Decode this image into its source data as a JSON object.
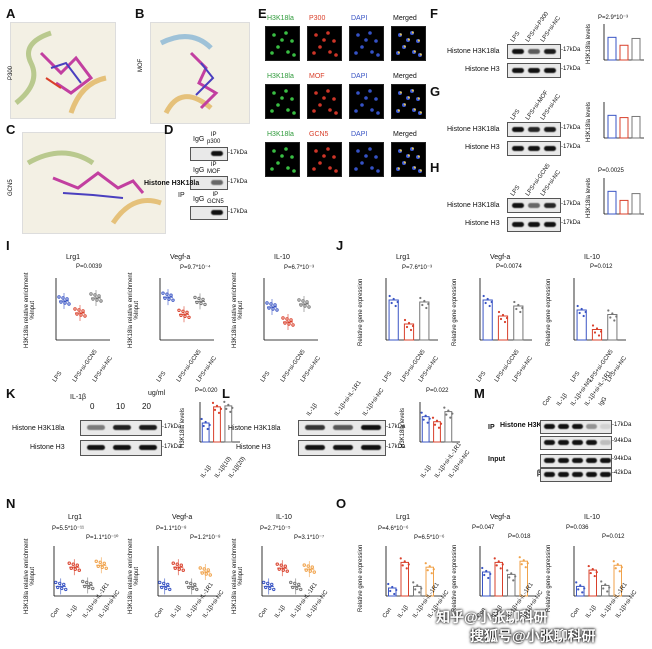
{
  "panels": {
    "A": {
      "label": "A",
      "protein": "P300"
    },
    "B": {
      "label": "B",
      "protein": "MOF"
    },
    "C": {
      "label": "C",
      "protein": "GCN5"
    },
    "D": {
      "label": "D",
      "row_label": "Histone H3K18la",
      "ip": "IP",
      "igg": "IgG",
      "ip_p300": "IP\np300",
      "ip_mof": "IP\nMOF",
      "ip_gcn5": "IP\nGCN5",
      "kda": "-17kDa"
    },
    "E": {
      "label": "E",
      "headers_row1": [
        "H3K18la",
        "P300",
        "DAPI",
        "Merged"
      ],
      "headers_row2": [
        "H3K18la",
        "MOF",
        "DAPI",
        "Merged"
      ],
      "headers_row3": [
        "H3K18la",
        "GCN5",
        "DAPI",
        "Merged"
      ],
      "scale": "10μm"
    },
    "F": {
      "label": "F",
      "lanes": [
        "LPS",
        "LPS+si-P300",
        "LPS+si-NC"
      ],
      "rows": [
        "Histone H3K18la",
        "Histone H3"
      ],
      "kda": [
        "-17kDa",
        "-17kDa"
      ],
      "pval": "P=2.9*10⁻³",
      "ylabel": "H3K18la levels"
    },
    "G": {
      "label": "G",
      "lanes": [
        "LPS",
        "LPS+si-MOF",
        "LPS+si-NC"
      ],
      "rows": [
        "Histone H3K18la",
        "Histone H3"
      ],
      "kda": [
        "-17kDa",
        "-17kDa"
      ],
      "ylabel": "H3K18la levels"
    },
    "H": {
      "label": "H",
      "lanes": [
        "LPS",
        "LPS+si-GCN5",
        "LPS+si-NC"
      ],
      "rows": [
        "Histone H3K18la",
        "Histone H3"
      ],
      "kda": [
        "-17kDa",
        "-17kDa"
      ],
      "pval": "P=0.0025",
      "ylabel": "H3K18la levels"
    },
    "I": {
      "label": "I",
      "ylabel": "H3K18la relative enrichment\n%Input",
      "plots": [
        {
          "title": "Lrg1",
          "pval": "P=0.0039"
        },
        {
          "title": "Vegf-a",
          "pval": "P=9.7*10⁻⁴"
        },
        {
          "title": "IL-10",
          "pval": "P=6.7*10⁻³"
        }
      ],
      "xcats": [
        "LPS",
        "LPS+si-GCN5",
        "LPS+si-NC"
      ]
    },
    "J": {
      "label": "J",
      "ylabel": "Relative gene expression",
      "plots": [
        {
          "title": "Lrg1",
          "pval": "P=7.6*10⁻³"
        },
        {
          "title": "Vegf-a",
          "pval": "P=0.0074"
        },
        {
          "title": "IL-10",
          "pval": "P=0.012"
        }
      ],
      "xcats": [
        "LPS",
        "LPS+si-GCN5",
        "LPS+si-NC"
      ]
    },
    "K": {
      "label": "K",
      "treat": "IL-1β",
      "unit": "ug/ml",
      "doses": [
        "0",
        "10",
        "20"
      ],
      "rows": [
        "Histone H3K18la",
        "Histone H3"
      ],
      "kda": [
        "-17kDa",
        "-17kDa"
      ],
      "pval": "P=0.020",
      "ylabel": "H3K18la levels",
      "xcats": [
        "IL-1β",
        "IL-1β(10)",
        "IL-1β(20)"
      ]
    },
    "L": {
      "label": "L",
      "lanes": [
        "IL-1β",
        "IL-1β+si-IL-1R1",
        "IL-1β+si-NC"
      ],
      "rows": [
        "Histone H3K18la",
        "Histone H3"
      ],
      "kda": [
        "-17kDa",
        "-17kDa"
      ],
      "pval": "P=0.022",
      "ylabel": "H3K18la levels",
      "xcats": [
        "IL-1β",
        "IL-1β+si-IL-1R1",
        "IL-1β+si-NC"
      ]
    },
    "M": {
      "label": "M",
      "lanes": [
        "Con",
        "IL-1β",
        "IL-1β+si-NC",
        "IL-1β+si-IL-1R1",
        "IgG"
      ],
      "ip": "IP",
      "input": "Input",
      "rows": [
        "Histone H3K18la",
        "GCN5",
        "GCN5",
        "β-actin"
      ],
      "kda": [
        "-17kDa",
        "-94kDa",
        "-94kDa",
        "-42kDa"
      ]
    },
    "N": {
      "label": "N",
      "ylabel": "H3K18la relative enrichment\n%Input",
      "plots": [
        {
          "title": "Lrg1",
          "p1": "P=5.5*10⁻¹¹",
          "p2": "P=1.1*10⁻¹⁰"
        },
        {
          "title": "Vegf-a",
          "p1": "P=1.1*10⁻⁸",
          "p2": "P=1.2*10⁻⁸"
        },
        {
          "title": "IL-10",
          "p1": "P=2.7*10⁻⁵",
          "p2": "P=3.1*10⁻⁷"
        }
      ],
      "xcats": [
        "Con",
        "IL-1β",
        "IL-1β+si-IL-1R1",
        "IL-1β+si-NC"
      ]
    },
    "O": {
      "label": "O",
      "ylabel": "Relative gene expression",
      "plots": [
        {
          "title": "Lrg1",
          "p1": "P=4.6*10⁻⁶",
          "p2": "P=6.5*10⁻⁶"
        },
        {
          "title": "Vegf-a",
          "p1": "P=0.047",
          "p2": "P=0.018"
        },
        {
          "title": "IL-10",
          "p1": "P=0.036",
          "p2": "P=0.012"
        }
      ],
      "xcats": [
        "Con",
        "IL-1β",
        "IL-1β+si-IL-1R1",
        "IL-1β+si-NC"
      ]
    }
  },
  "watermark": {
    "line1": "知乎@小张聊科研",
    "line2": "搜狐号@小张聊科研"
  },
  "colors": {
    "blue": "#3a55c4",
    "red": "#d9402b",
    "grey": "#777777",
    "orange": "#f0a24a",
    "green": "#2e9a3a",
    "magenta": "#c23fa0"
  },
  "chart_data": [
    {
      "type": "bar",
      "panel": "F",
      "categories": [
        "LPS",
        "LPS+si-P300",
        "LPS+si-NC"
      ],
      "values": [
        1.0,
        0.65,
        0.95
      ],
      "ylim": [
        0,
        1.5
      ]
    },
    {
      "type": "bar",
      "panel": "G",
      "categories": [
        "LPS",
        "LPS+si-MOF",
        "LPS+si-NC"
      ],
      "values": [
        1.0,
        0.9,
        0.95
      ],
      "ylim": [
        0,
        1.5
      ]
    },
    {
      "type": "bar",
      "panel": "H",
      "categories": [
        "LPS",
        "LPS+si-GCN5",
        "LPS+si-NC"
      ],
      "values": [
        1.0,
        0.6,
        0.9
      ],
      "ylim": [
        0,
        1.5
      ]
    },
    {
      "type": "scatter",
      "panel": "I",
      "title": "Lrg1",
      "categories": [
        "LPS",
        "LPS+si-GCN5",
        "LPS+si-NC"
      ],
      "values": [
        2.3,
        1.9,
        2.4
      ],
      "ylim": [
        1,
        3
      ]
    },
    {
      "type": "scatter",
      "panel": "I",
      "title": "Vegf-a",
      "categories": [
        "LPS",
        "LPS+si-GCN5",
        "LPS+si-NC"
      ],
      "values": [
        1.6,
        1.4,
        1.55
      ],
      "ylim": [
        1.1,
        1.8
      ]
    },
    {
      "type": "scatter",
      "panel": "I",
      "title": "IL-10",
      "categories": [
        "LPS",
        "LPS+si-GCN5",
        "LPS+si-NC"
      ],
      "values": [
        1.75,
        1.5,
        1.8
      ],
      "ylim": [
        1.2,
        2.2
      ]
    },
    {
      "type": "bar",
      "panel": "J",
      "title": "Lrg1",
      "categories": [
        "LPS",
        "LPS+si-GCN5",
        "LPS+si-NC"
      ],
      "values": [
        1.0,
        0.4,
        0.95
      ],
      "ylim": [
        0,
        1.5
      ]
    },
    {
      "type": "bar",
      "panel": "J",
      "title": "Vegf-a",
      "categories": [
        "LPS",
        "LPS+si-GCN5",
        "LPS+si-NC"
      ],
      "values": [
        1.0,
        0.6,
        0.85
      ],
      "ylim": [
        0,
        1.5
      ]
    },
    {
      "type": "bar",
      "panel": "J",
      "title": "IL-10",
      "categories": [
        "LPS",
        "LPS+si-GCN5",
        "LPS+si-NC"
      ],
      "values": [
        1.0,
        0.35,
        0.85
      ],
      "ylim": [
        0,
        2.0
      ]
    },
    {
      "type": "bar",
      "panel": "K",
      "categories": [
        "IL-1β",
        "IL-1β(10)",
        "IL-1β(20)"
      ],
      "values": [
        1.0,
        1.85,
        1.9
      ],
      "ylim": [
        0,
        2.0
      ]
    },
    {
      "type": "bar",
      "panel": "L",
      "categories": [
        "IL-1β",
        "IL-1β+si-IL-1R1",
        "IL-1β+si-NC"
      ],
      "values": [
        1.0,
        0.8,
        1.2
      ],
      "ylim": [
        0,
        1.5
      ]
    },
    {
      "type": "scatter",
      "panel": "N",
      "title": "Lrg1",
      "categories": [
        "Con",
        "IL-1β",
        "IL-1β+si-IL-1R1",
        "IL-1β+si-NC"
      ],
      "values": [
        1.0,
        3.0,
        1.1,
        3.2
      ],
      "ylim": [
        0,
        5
      ]
    },
    {
      "type": "scatter",
      "panel": "N",
      "title": "Vegf-a",
      "categories": [
        "Con",
        "IL-1β",
        "IL-1β+si-IL-1R1",
        "IL-1β+si-NC"
      ],
      "values": [
        1.0,
        3.0,
        1.0,
        2.5
      ],
      "ylim": [
        0,
        5
      ]
    },
    {
      "type": "scatter",
      "panel": "N",
      "title": "IL-10",
      "categories": [
        "Con",
        "IL-1β",
        "IL-1β+si-IL-1R1",
        "IL-1β+si-NC"
      ],
      "values": [
        1.0,
        2.9,
        1.0,
        2.8
      ],
      "ylim": [
        0,
        5
      ]
    },
    {
      "type": "bar",
      "panel": "O",
      "title": "Lrg1",
      "categories": [
        "Con",
        "IL-1β",
        "IL-1β+si-IL-1R1",
        "IL-1β+si-NC"
      ],
      "values": [
        1.0,
        4.2,
        1.2,
        3.6
      ],
      "ylim": [
        0,
        6
      ]
    },
    {
      "type": "bar",
      "panel": "O",
      "title": "Vegf-a",
      "categories": [
        "Con",
        "IL-1β",
        "IL-1β+si-IL-1R1",
        "IL-1β+si-NC"
      ],
      "values": [
        1.0,
        1.4,
        0.9,
        1.45
      ],
      "ylim": [
        0,
        2.0
      ]
    },
    {
      "type": "bar",
      "panel": "O",
      "title": "IL-10",
      "categories": [
        "Con",
        "IL-1β",
        "IL-1β+si-IL-1R1",
        "IL-1β+si-NC"
      ],
      "values": [
        1.0,
        2.7,
        1.1,
        3.2
      ],
      "ylim": [
        0,
        5
      ]
    }
  ]
}
